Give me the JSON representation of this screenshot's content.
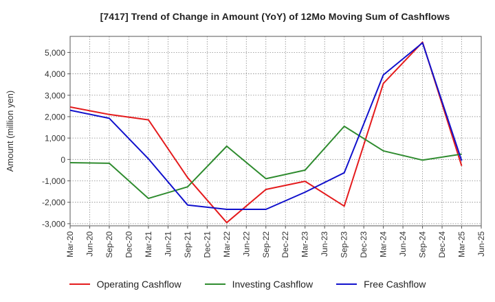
{
  "chart_data": {
    "type": "line",
    "title": "[7417]  Trend of Change in Amount (YoY) of 12Mo Moving Sum of Cashflows",
    "xlabel": "",
    "ylabel": "Amount (million yen)",
    "ylim": [
      -3100,
      5750
    ],
    "yticks": [
      -3000,
      -2000,
      -1000,
      0,
      1000,
      2000,
      3000,
      4000,
      5000
    ],
    "ytick_labels": [
      "-3,000",
      "-2,000",
      "-1,000",
      "0",
      "1,000",
      "2,000",
      "3,000",
      "4,000",
      "5,000"
    ],
    "categories": [
      "Mar-20",
      "Jun-20",
      "Sep-20",
      "Dec-20",
      "Mar-21",
      "Jun-21",
      "Sep-21",
      "Dec-21",
      "Mar-22",
      "Jun-22",
      "Sep-22",
      "Dec-22",
      "Mar-23",
      "Jun-23",
      "Sep-23",
      "Dec-23",
      "Mar-24",
      "Jun-24",
      "Sep-24",
      "Dec-24",
      "Mar-25",
      "Jun-25"
    ],
    "series": [
      {
        "name": "Operating Cashflow",
        "color": "#e41a1c",
        "values": [
          2450,
          null,
          2100,
          null,
          1850,
          null,
          -850,
          null,
          -2950,
          null,
          -1400,
          null,
          -1020,
          null,
          -2180,
          null,
          3550,
          null,
          5480,
          null,
          -300,
          null
        ]
      },
      {
        "name": "Investing Cashflow",
        "color": "#2e8b2e",
        "values": [
          -150,
          null,
          -180,
          null,
          -1820,
          null,
          -1280,
          null,
          620,
          null,
          -900,
          null,
          -500,
          null,
          1550,
          null,
          400,
          null,
          -30,
          null,
          250,
          null
        ]
      },
      {
        "name": "Free Cashflow",
        "color": "#1010cc",
        "values": [
          2300,
          null,
          1920,
          null,
          30,
          null,
          -2130,
          null,
          -2330,
          null,
          -2330,
          null,
          -1530,
          null,
          -620,
          null,
          3950,
          null,
          5450,
          null,
          -60,
          null
        ]
      }
    ]
  }
}
